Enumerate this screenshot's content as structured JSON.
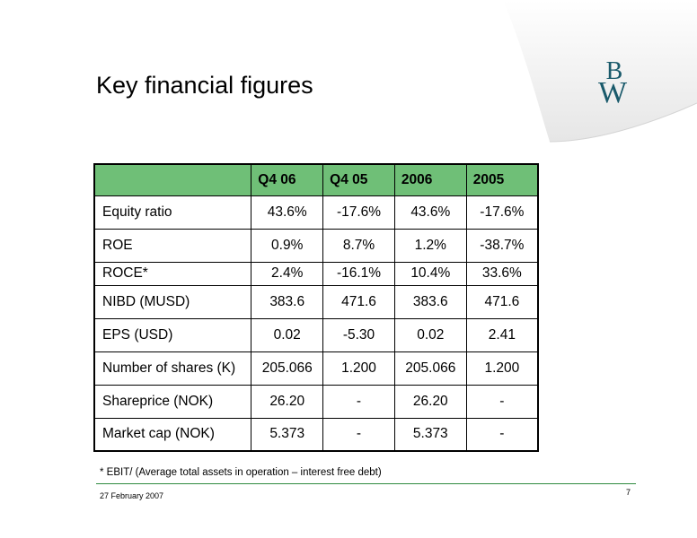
{
  "slide": {
    "title": "Key financial figures",
    "footnote": "* EBIT/ (Average total assets in operation – interest free debt)",
    "date": "27 February 2007",
    "page_number": "7"
  },
  "logo": {
    "letters": [
      "B",
      "W"
    ],
    "color": "#1a5a6b"
  },
  "colors": {
    "header_fill": "#6fbf77",
    "rule": "#2e8a3f"
  },
  "table": {
    "headers": [
      "",
      "Q4 06",
      "Q4 05",
      "2006",
      "2005"
    ],
    "rows": [
      {
        "label": "Equity ratio",
        "values": [
          "43.6%",
          "-17.6%",
          "43.6%",
          "-17.6%"
        ]
      },
      {
        "label": "ROE",
        "values": [
          "0.9%",
          "8.7%",
          "1.2%",
          "-38.7%"
        ]
      },
      {
        "label": "ROCE*",
        "values": [
          "2.4%",
          "-16.1%",
          "10.4%",
          "33.6%"
        ]
      },
      {
        "label": "NIBD (MUSD)",
        "values": [
          "383.6",
          "471.6",
          "383.6",
          "471.6"
        ]
      },
      {
        "label": "EPS (USD)",
        "values": [
          "0.02",
          "-5.30",
          "0.02",
          "2.41"
        ]
      },
      {
        "label": "Number of shares (K)",
        "values": [
          "205.066",
          "1.200",
          "205.066",
          "1.200"
        ]
      },
      {
        "label": "Shareprice (NOK)",
        "values": [
          "26.20",
          "-",
          "26.20",
          "-"
        ]
      },
      {
        "label": "Market cap (NOK)",
        "values": [
          "5.373",
          "-",
          "5.373",
          "-"
        ]
      }
    ]
  }
}
